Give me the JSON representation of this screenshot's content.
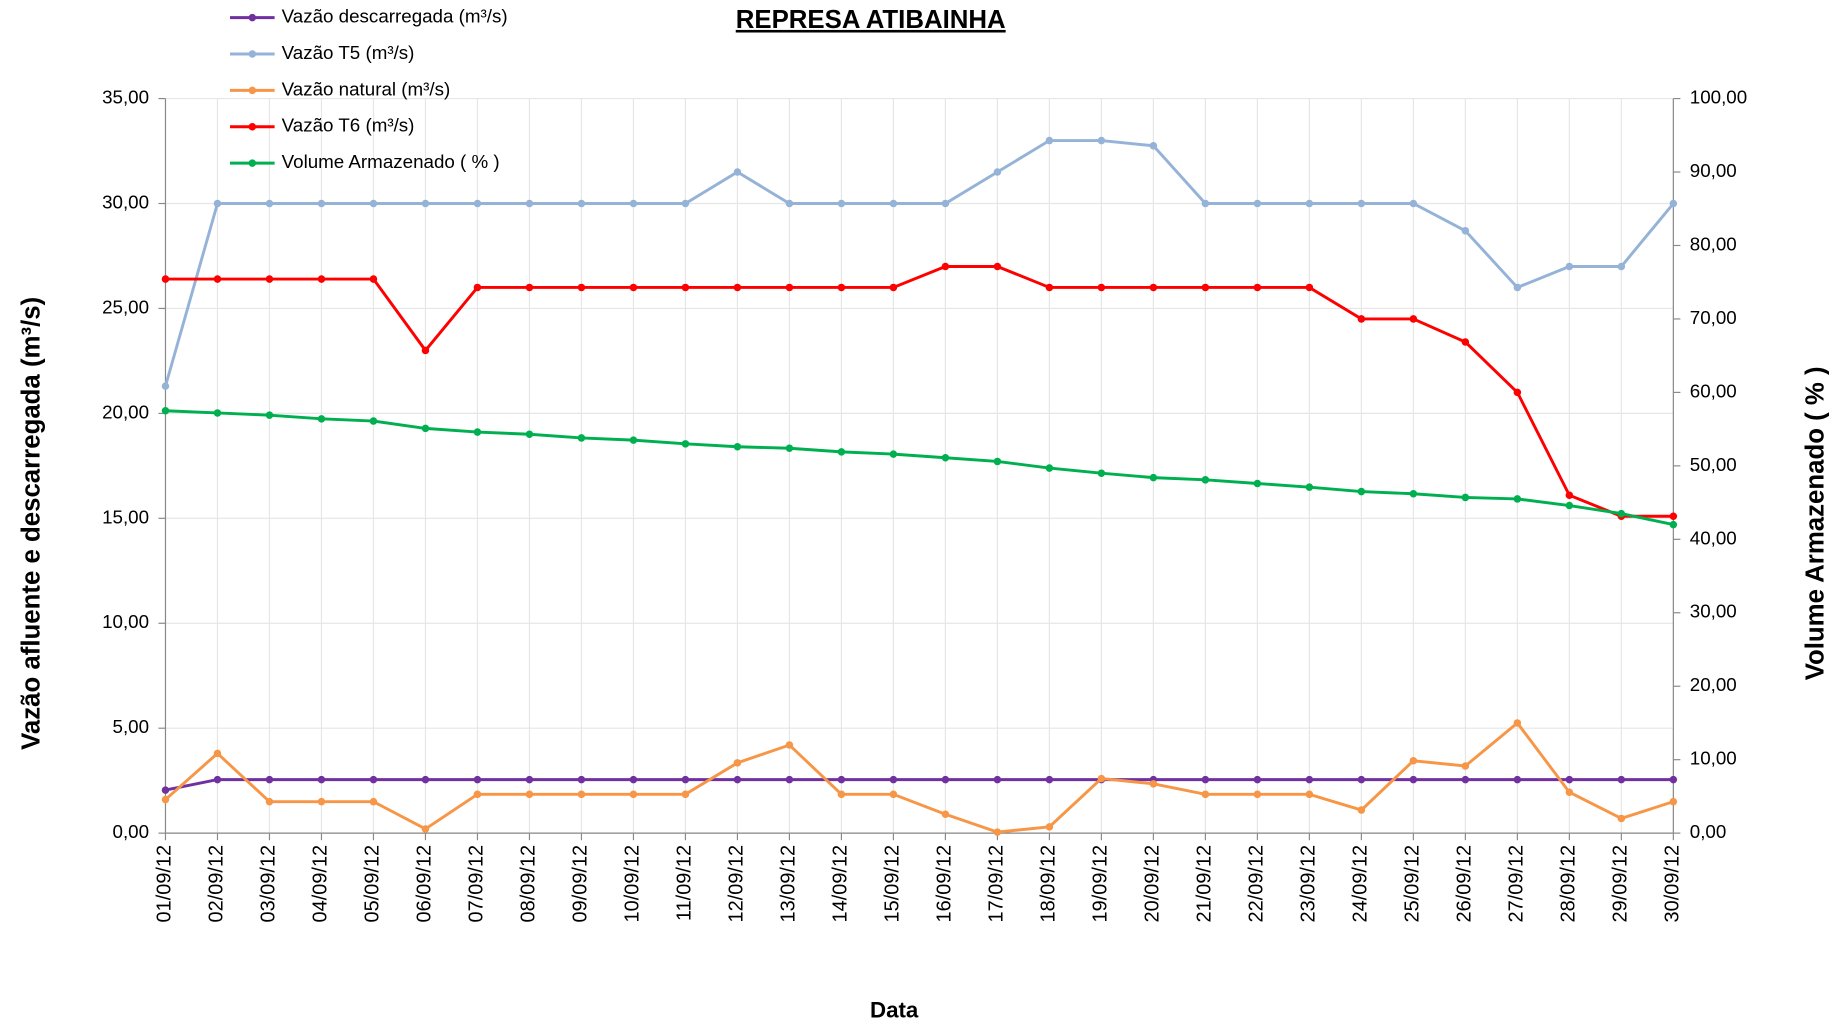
{
  "chart_data": {
    "type": "line",
    "title": "REPRESA ATIBAINHA",
    "xlabel": "Data",
    "ylabel": "Vazão afluente e descarregada (m³/s)",
    "y2label": "Volume Armazenado ( % )",
    "categories": [
      "01/09/12",
      "02/09/12",
      "03/09/12",
      "04/09/12",
      "05/09/12",
      "06/09/12",
      "07/09/12",
      "08/09/12",
      "09/09/12",
      "10/09/12",
      "11/09/12",
      "12/09/12",
      "13/09/12",
      "14/09/12",
      "15/09/12",
      "16/09/12",
      "17/09/12",
      "18/09/12",
      "19/09/12",
      "20/09/12",
      "21/09/12",
      "22/09/12",
      "23/09/12",
      "24/09/12",
      "25/09/12",
      "26/09/12",
      "27/09/12",
      "28/09/12",
      "29/09/12",
      "30/09/12"
    ],
    "series": [
      {
        "name": "Vazão descarregada (m³/s)",
        "color": "#7030a0",
        "values": [
          2.05,
          2.55,
          2.55,
          2.55,
          2.55,
          2.55,
          2.55,
          2.55,
          2.55,
          2.55,
          2.55,
          2.55,
          2.55,
          2.55,
          2.55,
          2.55,
          2.55,
          2.55,
          2.55,
          2.55,
          2.55,
          2.55,
          2.55,
          2.55,
          2.55,
          2.55,
          2.55,
          2.55,
          2.55,
          2.55
        ]
      },
      {
        "name": "Vazão T5 (m³/s)",
        "color": "#95b3d7",
        "values": [
          21.3,
          30,
          30,
          30,
          30,
          30,
          30,
          30,
          30,
          30,
          30,
          31.5,
          30,
          30,
          30,
          30,
          31.5,
          33,
          33,
          32.75,
          30,
          30,
          30,
          30,
          30,
          28.7,
          26,
          27,
          27,
          30
        ]
      },
      {
        "name": "Vazão natural (m³/s)",
        "color": "#f79646",
        "values": [
          1.6,
          3.8,
          1.5,
          1.5,
          1.5,
          0.2,
          1.85,
          1.85,
          1.85,
          1.85,
          1.85,
          3.35,
          4.2,
          1.85,
          1.85,
          0.9,
          0.05,
          0.3,
          2.6,
          2.35,
          1.85,
          1.85,
          1.85,
          1.1,
          3.45,
          3.2,
          5.25,
          1.95,
          0.7,
          1.5
        ]
      },
      {
        "name": "Vazão T6 (m³/s)",
        "color": "#ff0000",
        "values": [
          26.4,
          26.4,
          26.4,
          26.4,
          26.4,
          23.0,
          26,
          26,
          26,
          26,
          26,
          26,
          26,
          26,
          26,
          27,
          27,
          26,
          26,
          26,
          26,
          26,
          26,
          24.5,
          24.5,
          23.4,
          21,
          16.1,
          15.1,
          15.1
        ]
      },
      {
        "name": "Volume Armazenado ( % )",
        "color": "#00b050",
        "axis": "y2",
        "values": [
          57.5,
          57.2,
          56.9,
          56.4,
          56.1,
          55.1,
          54.6,
          54.3,
          53.8,
          53.5,
          53.0,
          52.6,
          52.4,
          51.9,
          51.6,
          51.1,
          50.6,
          49.7,
          49.0,
          48.4,
          48.1,
          47.6,
          47.1,
          46.5,
          46.2,
          45.7,
          45.5,
          44.6,
          43.5,
          42.0
        ]
      }
    ],
    "ylim": [
      0,
      35
    ],
    "yticks": [
      {
        "value": 0,
        "label": "0,00"
      },
      {
        "value": 5,
        "label": "5,00"
      },
      {
        "value": 10,
        "label": "10,00"
      },
      {
        "value": 15,
        "label": "15,00"
      },
      {
        "value": 20,
        "label": "20,00"
      },
      {
        "value": 25,
        "label": "25,00"
      },
      {
        "value": 30,
        "label": "30,00"
      },
      {
        "value": 35,
        "label": "35,00"
      }
    ],
    "y2lim": [
      0,
      100
    ],
    "y2ticks": [
      {
        "value": 0,
        "label": "0,00"
      },
      {
        "value": 10,
        "label": "10,00"
      },
      {
        "value": 20,
        "label": "20,00"
      },
      {
        "value": 30,
        "label": "30,00"
      },
      {
        "value": 40,
        "label": "40,00"
      },
      {
        "value": 50,
        "label": "50,00"
      },
      {
        "value": 60,
        "label": "60,00"
      },
      {
        "value": 70,
        "label": "70,00"
      },
      {
        "value": 80,
        "label": "80,00"
      },
      {
        "value": 90,
        "label": "90,00"
      },
      {
        "value": 100,
        "label": "100,00"
      }
    ],
    "grid": true,
    "legend": "top-left"
  }
}
